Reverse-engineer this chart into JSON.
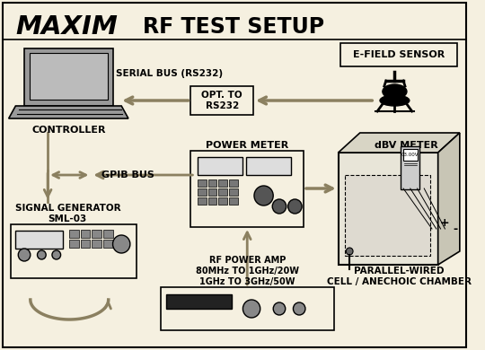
{
  "bg_color": "#f5f0e0",
  "title": "RF TEST SETUP",
  "border_color": "#000000",
  "arrow_color": "#8B8060",
  "component_labels": {
    "controller": "CONTROLLER",
    "serial_bus": "SERIAL BUS (RS232)",
    "opt_rs232": "OPT. TO\nRS232",
    "e_field": "E-FIELD SENSOR",
    "power_meter": "POWER METER",
    "dbv_meter": "dBV METER",
    "gpib_bus": "GPIB BUS",
    "signal_gen": "SIGNAL GENERATOR\nSML-03",
    "rf_power": "RF POWER AMP\n80MHz TO 1GHz/20W\n1GHz TO 3GHz/50W",
    "chamber": "PARALLEL-WIRED\nCELL / ANECHOIC CHAMBER"
  }
}
